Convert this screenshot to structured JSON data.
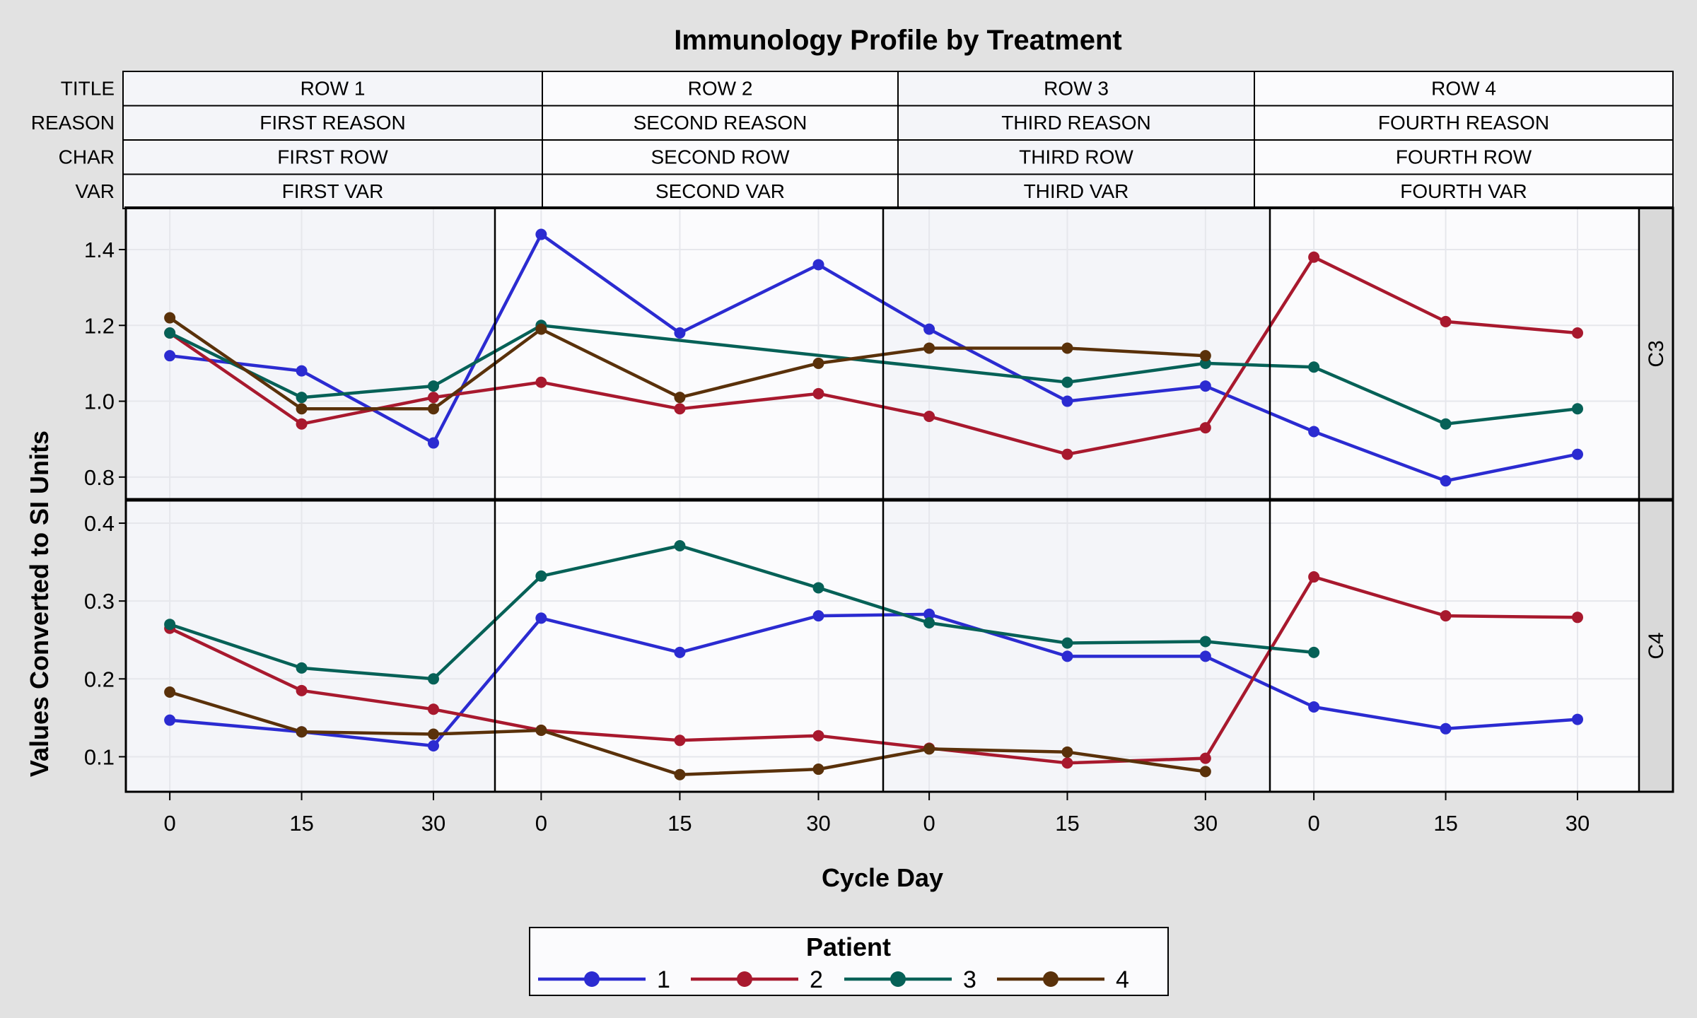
{
  "chart_data": {
    "type": "line",
    "title": "Immunology Profile by Treatment",
    "xlabel": "Cycle Day",
    "ylabel": "Values Converted to SI Units",
    "header_rows": [
      {
        "label": "TITLE",
        "cells": [
          "ROW 1",
          "ROW 2",
          "ROW 3",
          "ROW 4"
        ]
      },
      {
        "label": "REASON",
        "cells": [
          "FIRST REASON",
          "SECOND REASON",
          "THIRD REASON",
          "FOURTH REASON"
        ]
      },
      {
        "label": "CHAR",
        "cells": [
          "FIRST ROW",
          "SECOND ROW",
          "THIRD ROW",
          "FOURTH ROW"
        ]
      },
      {
        "label": "VAR",
        "cells": [
          "FIRST VAR",
          "SECOND VAR",
          "THIRD VAR",
          "FOURTH VAR"
        ]
      }
    ],
    "x_ticks": [
      0,
      15,
      30
    ],
    "x_tick_labels": [
      "0",
      "15",
      "30"
    ],
    "panels": [
      {
        "name": "C3",
        "ylim": [
          0.74,
          1.51
        ],
        "y_ticks": [
          0.8,
          1.0,
          1.2,
          1.4
        ],
        "y_tick_labels": [
          "0.8",
          "1.0",
          "1.2",
          "1.4"
        ],
        "series": [
          {
            "patient": "1",
            "values": [
              [
                1.12,
                1.08,
                0.89
              ],
              [
                1.44,
                1.18,
                1.36
              ],
              [
                1.19,
                1.0,
                1.04
              ],
              [
                0.92,
                0.79,
                0.86
              ]
            ]
          },
          {
            "patient": "2",
            "values": [
              [
                1.18,
                0.94,
                1.01
              ],
              [
                1.05,
                0.98,
                1.02
              ],
              [
                0.96,
                0.86,
                0.93
              ],
              [
                1.38,
                1.21,
                1.18
              ]
            ]
          },
          {
            "patient": "3",
            "values": [
              [
                1.18,
                1.01,
                1.04
              ],
              [
                1.2,
                null,
                null
              ],
              [
                null,
                1.05,
                1.1
              ],
              [
                1.09,
                0.94,
                0.98
              ]
            ]
          },
          {
            "patient": "4",
            "values": [
              [
                1.22,
                0.98,
                0.98
              ],
              [
                1.19,
                1.01,
                1.1
              ],
              [
                1.14,
                1.14,
                1.12
              ],
              [
                null,
                null,
                null
              ]
            ]
          }
        ]
      },
      {
        "name": "C4",
        "ylim": [
          0.055,
          0.43
        ],
        "y_ticks": [
          0.1,
          0.2,
          0.3,
          0.4
        ],
        "y_tick_labels": [
          "0.1",
          "0.2",
          "0.3",
          "0.4"
        ],
        "series": [
          {
            "patient": "1",
            "values": [
              [
                0.147,
                0.132,
                0.114
              ],
              [
                0.278,
                0.234,
                0.281
              ],
              [
                0.283,
                0.229,
                0.229
              ],
              [
                0.164,
                0.136,
                0.148
              ]
            ]
          },
          {
            "patient": "2",
            "values": [
              [
                0.265,
                0.185,
                0.161
              ],
              [
                0.134,
                0.121,
                0.127
              ],
              [
                0.111,
                0.092,
                0.098
              ],
              [
                0.331,
                0.281,
                0.279
              ]
            ]
          },
          {
            "patient": "3",
            "values": [
              [
                0.27,
                0.214,
                0.2
              ],
              [
                0.332,
                0.371,
                0.317
              ],
              [
                0.272,
                0.246,
                0.248
              ],
              [
                0.234,
                null,
                null
              ]
            ]
          },
          {
            "patient": "4",
            "values": [
              [
                0.183,
                0.132,
                0.129
              ],
              [
                0.134,
                0.077,
                0.084
              ],
              [
                0.11,
                0.106,
                0.081
              ],
              [
                null,
                null,
                null
              ]
            ]
          }
        ]
      }
    ],
    "legend": {
      "title": "Patient",
      "position": "bottom-center",
      "entries": [
        {
          "label": "1",
          "color": "#2b2bd1"
        },
        {
          "label": "2",
          "color": "#a8192e"
        },
        {
          "label": "3",
          "color": "#066157"
        },
        {
          "label": "4",
          "color": "#5a310a"
        }
      ]
    },
    "grid": true
  }
}
